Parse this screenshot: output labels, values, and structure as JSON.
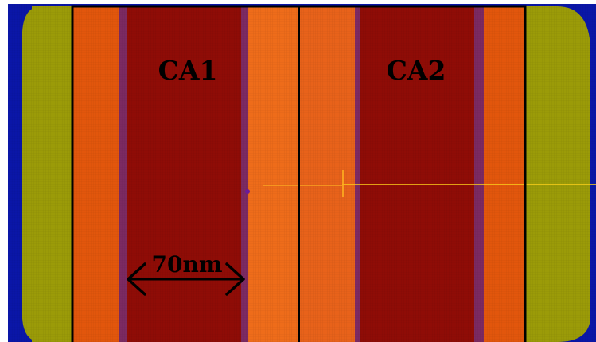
{
  "diagram": {
    "regions": [
      {
        "id": "ca1",
        "label": "CA1"
      },
      {
        "id": "ca2",
        "label": "CA2"
      }
    ],
    "dimension_annotation": {
      "text": "70nm"
    }
  },
  "colors": {
    "background_blue": "#0a16a8",
    "outer_olive": "#9b9b08",
    "orange": "#e2560c",
    "orange_light": "#ee6c1a",
    "dark_red": "#8f0c06",
    "purple_edge": "#7c2a62",
    "outline": "#000000",
    "yellow_line": "#ffd21a"
  }
}
